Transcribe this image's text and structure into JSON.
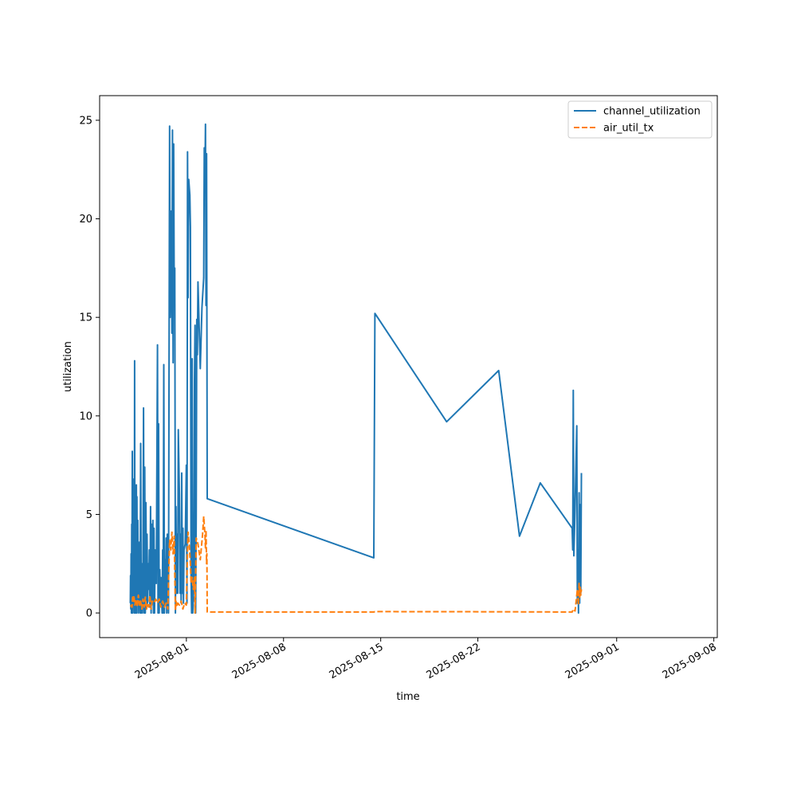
{
  "chart_data": {
    "type": "line",
    "xlabel": "time",
    "ylabel": "utilization",
    "x_type": "datetime",
    "xlim": [
      "2025-07-25T18:00",
      "2025-09-08T06:00"
    ],
    "ylim": [
      -1.25,
      26.25
    ],
    "x_ticks": [
      "2025-08-01",
      "2025-08-08",
      "2025-08-15",
      "2025-08-22",
      "2025-09-01",
      "2025-09-08"
    ],
    "y_ticks": [
      0,
      5,
      10,
      15,
      20,
      25
    ],
    "grid": false,
    "legend": "top-right",
    "series": [
      {
        "name": "channel_utilization",
        "color": "#1f77b4",
        "style": "solid",
        "points": [
          [
            "2025-07-27T23:00",
            0.5
          ],
          [
            "2025-07-27T23:30",
            1.9
          ],
          [
            "2025-07-28T00:00",
            0.2
          ],
          [
            "2025-07-28T00:30",
            3.0
          ],
          [
            "2025-07-28T01:00",
            0
          ],
          [
            "2025-07-28T01:30",
            4.5
          ],
          [
            "2025-07-28T02:00",
            0
          ],
          [
            "2025-07-28T02:30",
            8.2
          ],
          [
            "2025-07-28T03:00",
            0
          ],
          [
            "2025-07-28T03:30",
            6.8
          ],
          [
            "2025-07-28T04:00",
            1.2
          ],
          [
            "2025-07-28T05:00",
            4.3
          ],
          [
            "2025-07-28T06:00",
            0
          ],
          [
            "2025-07-28T06:30",
            12.8
          ],
          [
            "2025-07-28T07:00",
            0
          ],
          [
            "2025-07-28T08:00",
            3.8
          ],
          [
            "2025-07-28T09:00",
            0
          ],
          [
            "2025-07-28T09:30",
            6.5
          ],
          [
            "2025-07-28T10:00",
            0
          ],
          [
            "2025-07-28T10:30",
            5.9
          ],
          [
            "2025-07-28T11:00",
            1.5
          ],
          [
            "2025-07-28T12:00",
            4.7
          ],
          [
            "2025-07-28T13:00",
            0
          ],
          [
            "2025-07-28T14:00",
            1.5
          ],
          [
            "2025-07-28T15:00",
            3.6
          ],
          [
            "2025-07-28T16:00",
            0
          ],
          [
            "2025-07-28T17:00",
            8.6
          ],
          [
            "2025-07-28T18:00",
            0
          ],
          [
            "2025-07-28T19:00",
            2.5
          ],
          [
            "2025-07-28T20:00",
            0
          ],
          [
            "2025-07-28T21:00",
            2.0
          ],
          [
            "2025-07-28T22:00",
            10.4
          ],
          [
            "2025-07-28T23:00",
            0
          ],
          [
            "2025-07-29T00:00",
            7.4
          ],
          [
            "2025-07-29T01:00",
            0
          ],
          [
            "2025-07-29T02:00",
            5.6
          ],
          [
            "2025-07-29T03:00",
            0.2
          ],
          [
            "2025-07-29T04:00",
            4.0
          ],
          [
            "2025-07-29T05:00",
            0.5
          ],
          [
            "2025-07-29T06:00",
            2.5
          ],
          [
            "2025-07-29T07:00",
            1.2
          ],
          [
            "2025-07-29T08:00",
            3.2
          ],
          [
            "2025-07-29T09:00",
            0.3
          ],
          [
            "2025-07-29T10:00",
            5.4
          ],
          [
            "2025-07-29T11:00",
            0
          ],
          [
            "2025-07-29T12:00",
            4.5
          ],
          [
            "2025-07-29T13:00",
            0.5
          ],
          [
            "2025-07-29T14:00",
            4.7
          ],
          [
            "2025-07-29T15:00",
            0
          ],
          [
            "2025-07-29T16:00",
            4.3
          ],
          [
            "2025-07-29T17:00",
            0
          ],
          [
            "2025-07-29T18:00",
            3.2
          ],
          [
            "2025-07-29T20:00",
            1.5
          ],
          [
            "2025-07-29T22:00",
            13.6
          ],
          [
            "2025-07-29T23:00",
            0
          ],
          [
            "2025-07-30T00:00",
            9.6
          ],
          [
            "2025-07-30T01:00",
            0
          ],
          [
            "2025-07-30T02:00",
            2.2
          ],
          [
            "2025-07-30T03:00",
            0.5
          ],
          [
            "2025-07-30T04:00",
            1.8
          ],
          [
            "2025-07-30T06:00",
            0
          ],
          [
            "2025-07-30T07:00",
            3.2
          ],
          [
            "2025-07-30T08:00",
            0
          ],
          [
            "2025-07-30T09:00",
            12.6
          ],
          [
            "2025-07-30T10:00",
            0
          ],
          [
            "2025-07-30T11:00",
            2.7
          ],
          [
            "2025-07-30T12:00",
            0.5
          ],
          [
            "2025-07-30T13:00",
            3.8
          ],
          [
            "2025-07-30T14:00",
            0
          ],
          [
            "2025-07-30T15:00",
            4.0
          ],
          [
            "2025-07-30T17:00",
            0
          ],
          [
            "2025-07-30T19:00",
            24.7
          ],
          [
            "2025-07-30T20:00",
            15.0
          ],
          [
            "2025-07-30T22:00",
            20.4
          ],
          [
            "2025-07-30T23:00",
            14.2
          ],
          [
            "2025-07-31T00:00",
            24.5
          ],
          [
            "2025-07-31T01:00",
            12.7
          ],
          [
            "2025-07-31T02:00",
            23.8
          ],
          [
            "2025-07-31T03:00",
            16.0
          ],
          [
            "2025-07-31T04:00",
            17.5
          ],
          [
            "2025-07-31T05:00",
            0
          ],
          [
            "2025-07-31T06:00",
            5.4
          ],
          [
            "2025-07-31T07:00",
            1.0
          ],
          [
            "2025-07-31T08:00",
            4.0
          ],
          [
            "2025-07-31T09:00",
            1.0
          ],
          [
            "2025-07-31T10:00",
            9.3
          ],
          [
            "2025-07-31T12:00",
            6.0
          ],
          [
            "2025-07-31T13:00",
            1.0
          ],
          [
            "2025-07-31T14:00",
            4.0
          ],
          [
            "2025-07-31T15:00",
            0.5
          ],
          [
            "2025-07-31T16:00",
            7.1
          ],
          [
            "2025-07-31T17:00",
            1.0
          ],
          [
            "2025-07-31T18:00",
            4.3
          ],
          [
            "2025-07-31T19:00",
            0.5
          ],
          [
            "2025-07-31T20:00",
            3.2
          ],
          [
            "2025-07-31T22:00",
            3.5
          ],
          [
            "2025-08-01T00:00",
            7.5
          ],
          [
            "2025-08-01T01:00",
            0.5
          ],
          [
            "2025-08-01T02:00",
            23.4
          ],
          [
            "2025-08-01T03:00",
            16.0
          ],
          [
            "2025-08-01T04:00",
            22.0
          ],
          [
            "2025-08-01T06:00",
            21.2
          ],
          [
            "2025-08-01T07:00",
            19.6
          ],
          [
            "2025-08-01T08:00",
            2.0
          ],
          [
            "2025-08-01T09:00",
            0
          ],
          [
            "2025-08-01T10:00",
            12.9
          ],
          [
            "2025-08-01T11:00",
            0
          ],
          [
            "2025-08-01T13:00",
            1.5
          ],
          [
            "2025-08-01T14:00",
            11.8
          ],
          [
            "2025-08-01T15:00",
            14.6
          ],
          [
            "2025-08-01T16:00",
            0
          ],
          [
            "2025-08-01T17:00",
            5.0
          ],
          [
            "2025-08-01T18:00",
            14.9
          ],
          [
            "2025-08-01T19:00",
            13.1
          ],
          [
            "2025-08-01T20:00",
            16.8
          ],
          [
            "2025-08-02T00:00",
            12.4
          ],
          [
            "2025-08-02T03:00",
            15.5
          ],
          [
            "2025-08-02T06:00",
            17.0
          ],
          [
            "2025-08-02T07:00",
            23.6
          ],
          [
            "2025-08-02T08:00",
            21.8
          ],
          [
            "2025-08-02T09:00",
            24.8
          ],
          [
            "2025-08-02T10:00",
            15.6
          ],
          [
            "2025-08-02T11:00",
            23.3
          ],
          [
            "2025-08-02T12:00",
            5.8
          ],
          [
            "2025-08-14T12:00",
            2.8
          ],
          [
            "2025-08-14T14:00",
            15.2
          ],
          [
            "2025-08-19T18:00",
            9.7
          ],
          [
            "2025-08-23T12:00",
            12.3
          ],
          [
            "2025-08-25T00:00",
            3.9
          ],
          [
            "2025-08-26T12:00",
            6.6
          ],
          [
            "2025-08-28T19:00",
            4.3
          ],
          [
            "2025-08-28T20:00",
            3.2
          ],
          [
            "2025-08-28T21:00",
            11.3
          ],
          [
            "2025-08-28T22:00",
            2.9
          ],
          [
            "2025-08-29T00:00",
            5.2
          ],
          [
            "2025-08-29T02:00",
            8.0
          ],
          [
            "2025-08-29T03:00",
            9.5
          ],
          [
            "2025-08-29T04:00",
            0.5
          ],
          [
            "2025-08-29T05:00",
            3.2
          ],
          [
            "2025-08-29T06:00",
            0
          ],
          [
            "2025-08-29T07:00",
            6.1
          ],
          [
            "2025-08-29T08:00",
            0.5
          ],
          [
            "2025-08-29T09:00",
            5.5
          ],
          [
            "2025-08-29T10:00",
            1.0
          ],
          [
            "2025-08-29T11:00",
            7.1
          ]
        ]
      },
      {
        "name": "air_util_tx",
        "color": "#ff7f0e",
        "style": "dashed",
        "points": [
          [
            "2025-07-27T23:00",
            0.4
          ],
          [
            "2025-07-28T02:00",
            0.3
          ],
          [
            "2025-07-28T03:00",
            0.8
          ],
          [
            "2025-07-28T04:00",
            0.6
          ],
          [
            "2025-07-28T05:00",
            0.9
          ],
          [
            "2025-07-28T07:00",
            0.4
          ],
          [
            "2025-07-28T09:00",
            0.7
          ],
          [
            "2025-07-28T11:00",
            0.3
          ],
          [
            "2025-07-28T13:00",
            0.9
          ],
          [
            "2025-07-28T15:00",
            0.4
          ],
          [
            "2025-07-28T17:00",
            0.6
          ],
          [
            "2025-07-28T19:00",
            0.2
          ],
          [
            "2025-07-28T21:00",
            0.7
          ],
          [
            "2025-07-28T23:00",
            0.3
          ],
          [
            "2025-07-29T01:00",
            0.8
          ],
          [
            "2025-07-29T03:00",
            0.2
          ],
          [
            "2025-07-29T05:00",
            0.5
          ],
          [
            "2025-07-29T07:00",
            0.3
          ],
          [
            "2025-07-29T09:00",
            0.9
          ],
          [
            "2025-07-29T11:00",
            0.2
          ],
          [
            "2025-07-29T13:00",
            0.6
          ],
          [
            "2025-07-29T16:00",
            0.5
          ],
          [
            "2025-07-29T19:00",
            0.7
          ],
          [
            "2025-07-29T22:00",
            0.5
          ],
          [
            "2025-07-30T01:00",
            0.7
          ],
          [
            "2025-07-30T04:00",
            0.3
          ],
          [
            "2025-07-30T07:00",
            0.6
          ],
          [
            "2025-07-30T10:00",
            0.3
          ],
          [
            "2025-07-30T13:00",
            0.5
          ],
          [
            "2025-07-30T16:00",
            0.2
          ],
          [
            "2025-07-30T19:00",
            3.7
          ],
          [
            "2025-07-30T21:00",
            3.2
          ],
          [
            "2025-07-30T23:00",
            4.1
          ],
          [
            "2025-07-31T01:00",
            3.0
          ],
          [
            "2025-07-31T03:00",
            3.9
          ],
          [
            "2025-07-31T04:00",
            2.0
          ],
          [
            "2025-07-31T05:00",
            0.1
          ],
          [
            "2025-07-31T06:00",
            0.6
          ],
          [
            "2025-07-31T07:00",
            0.3
          ],
          [
            "2025-07-31T09:00",
            0.5
          ],
          [
            "2025-07-31T12:00",
            0.4
          ],
          [
            "2025-07-31T15:00",
            0.6
          ],
          [
            "2025-07-31T18:00",
            0.2
          ],
          [
            "2025-07-31T21:00",
            0.5
          ],
          [
            "2025-08-01T00:00",
            0.4
          ],
          [
            "2025-08-01T02:00",
            3.2
          ],
          [
            "2025-08-01T03:00",
            4.1
          ],
          [
            "2025-08-01T05:00",
            3.4
          ],
          [
            "2025-08-01T07:00",
            2.5
          ],
          [
            "2025-08-01T08:00",
            1.5
          ],
          [
            "2025-08-01T10:00",
            1.8
          ],
          [
            "2025-08-01T12:00",
            1.2
          ],
          [
            "2025-08-01T14:00",
            1.8
          ],
          [
            "2025-08-01T15:00",
            0
          ],
          [
            "2025-08-01T17:00",
            3.8
          ],
          [
            "2025-08-01T20:00",
            3.5
          ],
          [
            "2025-08-02T00:00",
            2.7
          ],
          [
            "2025-08-02T04:00",
            4.0
          ],
          [
            "2025-08-02T06:00",
            4.9
          ],
          [
            "2025-08-02T08:00",
            4.0
          ],
          [
            "2025-08-02T09:00",
            3.3
          ],
          [
            "2025-08-02T10:00",
            4.2
          ],
          [
            "2025-08-02T11:00",
            2.5
          ],
          [
            "2025-08-02T11:30",
            3.0
          ],
          [
            "2025-08-02T12:00",
            0.05
          ],
          [
            "2025-08-14T12:00",
            0.05
          ],
          [
            "2025-08-14T14:00",
            0.07
          ],
          [
            "2025-08-23T12:00",
            0.06
          ],
          [
            "2025-08-28T19:00",
            0.05
          ],
          [
            "2025-08-28T21:00",
            0.2
          ],
          [
            "2025-08-29T00:00",
            0.1
          ],
          [
            "2025-08-29T02:00",
            0.6
          ],
          [
            "2025-08-29T04:00",
            1.2
          ],
          [
            "2025-08-29T06:00",
            0.4
          ],
          [
            "2025-08-29T07:00",
            1.5
          ],
          [
            "2025-08-29T08:00",
            0.8
          ],
          [
            "2025-08-29T09:00",
            1.3
          ],
          [
            "2025-08-29T10:00",
            0.9
          ],
          [
            "2025-08-29T11:00",
            1.2
          ]
        ]
      }
    ]
  }
}
